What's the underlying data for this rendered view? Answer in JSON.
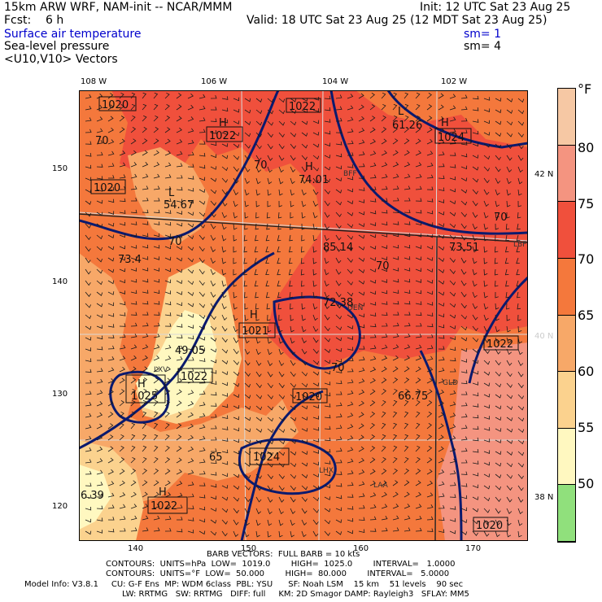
{
  "header": {
    "model": "15km ARW WRF, NAM-init -- NCAR/MMM",
    "init": "Init: 12 UTC Sat 23 Aug 25",
    "fcst": "Fcst:    6 h",
    "valid": "Valid: 18 UTC Sat 23 Aug 25 (12 MDT Sat 23 Aug 25)",
    "field1": "Surface air temperature",
    "field1_sm": "sm= 1",
    "field2": "Sea-level pressure",
    "field2_sm": "sm= 4",
    "field3": "<U10,V10> Vectors"
  },
  "top_lon_labels": [
    "108 W",
    "106 W",
    "104 W",
    "102 W"
  ],
  "right_lat_labels": [
    "42 N",
    "40 N",
    "38 N"
  ],
  "left_grid_labels": [
    "150",
    "140",
    "130",
    "120"
  ],
  "bottom_grid_labels": [
    "140",
    "150",
    "160",
    "170"
  ],
  "colorbar": {
    "unit": "°F",
    "labels": [
      "80",
      "75",
      "70",
      "65",
      "60",
      "55",
      "50"
    ],
    "colors": [
      "#f6c8a4",
      "#f49480",
      "#f0503c",
      "#f4783c",
      "#f7a868",
      "#fbd28e",
      "#fff8c0",
      "#90e07c"
    ]
  },
  "map_labels": {
    "highs": [
      {
        "letter": "H",
        "value": "1022"
      },
      {
        "letter": "H",
        "value": "1024"
      },
      {
        "letter": "H",
        "value": "1021"
      },
      {
        "letter": "H",
        "value": "1025"
      },
      {
        "letter": "H",
        "value": "1024"
      },
      {
        "letter": "H",
        "value": "1022"
      }
    ],
    "boxes": [
      "1020",
      "1022",
      "1020",
      "1022",
      "1022",
      "1020"
    ],
    "temps": [
      "61.26",
      "74.01",
      "54.67",
      "85.14",
      "73.51",
      "72.38",
      "49.05",
      "66.75",
      "73.4",
      "6.39"
    ],
    "contours": [
      "70",
      "70",
      "70",
      "70",
      "70",
      "70",
      "65",
      "70",
      "70",
      "70"
    ],
    "lows": [
      "L",
      "L"
    ],
    "cities": [
      "LXV",
      "GLD",
      "LAA",
      "DEN",
      "BFF",
      "LBF",
      "LHX"
    ]
  },
  "footer": {
    "line1": "BARB VECTORS:  FULL BARB = 10 kts",
    "line2": "CONTOURS:  UNITS=hPa  LOW=  1019.0        HIGH=  1025.0        INTERVAL=   1.0000",
    "line3": "CONTOURS:  UNITS=°F  LOW=  50.000        HIGH=  80.000        INTERVAL=   5.0000",
    "line4": "Model Info: V3.8.1     CU: G-F Ens  MP: WDM 6class  PBL: YSU      SF: Noah LSM    15 km    51 levels    90 sec",
    "line5": "LW: RRTMG   SW: RRTMG   DIFF: full     KM: 2D Smagor DAMP: Rayleigh3   SFLAY: MM5"
  }
}
